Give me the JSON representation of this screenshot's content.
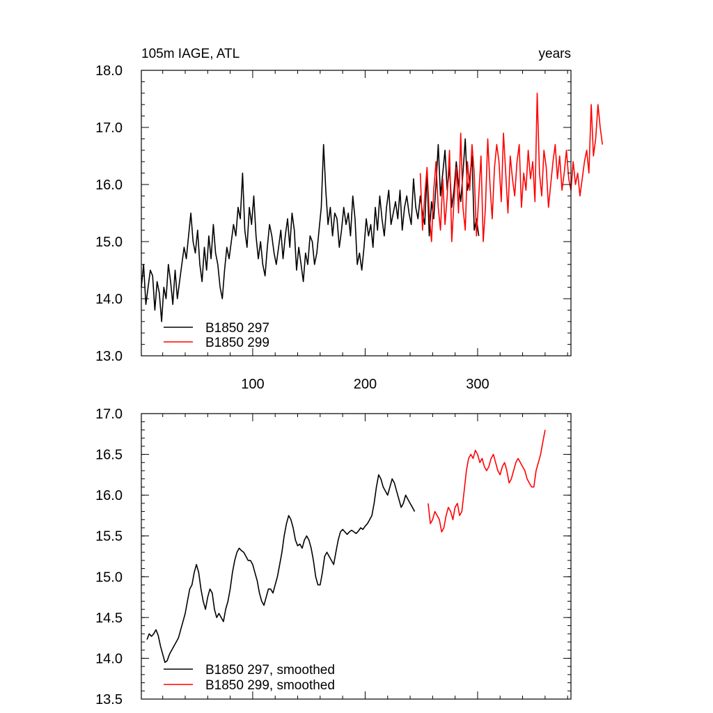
{
  "chart_data": [
    {
      "type": "line",
      "title": "105m IAGE, ATL",
      "xlabel_right": "years",
      "xlim": [
        1,
        383
      ],
      "ylim": [
        13.0,
        18.0
      ],
      "x_ticks": [
        100,
        200,
        300
      ],
      "y_ticks": [
        "13.0",
        "14.0",
        "15.0",
        "16.0",
        "17.0",
        "18.0"
      ],
      "legend": [
        "B1850 297",
        "B1850 299"
      ],
      "series": [
        {
          "name": "B1850 297",
          "color": "#000000",
          "x_start": 1,
          "x_step": 2,
          "values": [
            14.2,
            14.6,
            13.9,
            14.2,
            14.5,
            14.4,
            13.8,
            14.3,
            14.1,
            13.6,
            14.2,
            14.0,
            14.6,
            14.3,
            13.9,
            14.5,
            14.0,
            14.3,
            14.6,
            14.9,
            14.7,
            15.1,
            15.5,
            15.0,
            14.8,
            15.2,
            14.6,
            14.3,
            14.9,
            14.5,
            15.1,
            14.7,
            15.3,
            14.8,
            14.6,
            14.2,
            14.0,
            14.5,
            14.9,
            14.7,
            15.0,
            15.3,
            15.1,
            15.6,
            15.4,
            16.2,
            15.2,
            14.9,
            15.6,
            15.3,
            15.8,
            15.1,
            14.7,
            15.0,
            14.6,
            14.4,
            14.9,
            15.3,
            15.1,
            14.8,
            14.6,
            14.9,
            15.2,
            14.7,
            15.1,
            15.4,
            14.9,
            15.5,
            15.2,
            14.5,
            14.9,
            14.6,
            14.3,
            14.8,
            14.6,
            15.1,
            15.0,
            14.6,
            14.8,
            15.2,
            15.6,
            16.7,
            15.9,
            15.3,
            15.6,
            15.1,
            15.5,
            15.4,
            14.9,
            15.2,
            15.6,
            15.3,
            15.5,
            15.1,
            15.8,
            15.4,
            14.6,
            14.8,
            14.5,
            14.9,
            15.4,
            15.1,
            15.3,
            14.9,
            15.6,
            15.2,
            15.8,
            15.4,
            15.1,
            15.6,
            15.9,
            15.3,
            15.5,
            15.7,
            15.4,
            15.9,
            15.2,
            15.6,
            15.8,
            15.5,
            15.3,
            16.1,
            15.6,
            15.4,
            15.8,
            15.5,
            15.3,
            16.2,
            15.1,
            15.7,
            15.4,
            16.0,
            16.7,
            15.8,
            16.2,
            16.6,
            15.9,
            16.3,
            15.6,
            15.9,
            16.4,
            16.0,
            15.7,
            16.2,
            16.8,
            15.9,
            16.1,
            16.5,
            15.2,
            15.4,
            15.1
          ]
        },
        {
          "name": "B1850 299",
          "color": "#ff0000",
          "x_start": 249,
          "x_step": 2,
          "values": [
            16.2,
            15.2,
            15.8,
            16.3,
            15.5,
            15.0,
            15.9,
            16.4,
            15.6,
            15.2,
            16.1,
            15.3,
            15.8,
            16.6,
            15.0,
            15.7,
            16.3,
            15.5,
            16.9,
            15.6,
            15.2,
            16.4,
            15.9,
            16.7,
            16.2,
            15.1,
            15.8,
            16.5,
            15.0,
            15.6,
            16.8,
            16.0,
            15.4,
            16.3,
            16.7,
            16.4,
            15.7,
            16.9,
            16.2,
            15.5,
            16.5,
            16.1,
            15.8,
            16.4,
            16.7,
            15.6,
            16.2,
            15.9,
            16.6,
            16.1,
            16.4,
            15.7,
            17.6,
            16.2,
            15.8,
            16.6,
            16.3,
            15.6,
            16.0,
            16.4,
            16.7,
            16.1,
            16.5,
            15.9,
            16.2,
            16.6,
            16.1,
            15.9,
            16.4,
            16.0,
            16.2,
            15.8,
            16.1,
            16.4,
            16.6,
            16.2,
            17.4,
            16.5,
            16.8,
            17.4,
            17.0,
            16.7
          ]
        }
      ]
    },
    {
      "type": "line",
      "xlim": [
        1,
        383
      ],
      "ylim": [
        13.5,
        17.0
      ],
      "y_ticks": [
        "13.5",
        "14.0",
        "14.5",
        "15.0",
        "15.5",
        "16.0",
        "16.5",
        "17.0"
      ],
      "legend": [
        "B1850 297, smoothed",
        "B1850 299, smoothed"
      ],
      "series": [
        {
          "name": "B1850 297, smoothed",
          "color": "#000000",
          "x_start": 6,
          "x_step": 2,
          "values": [
            14.23,
            14.3,
            14.27,
            14.3,
            14.35,
            14.28,
            14.15,
            14.05,
            13.95,
            13.97,
            14.05,
            14.1,
            14.15,
            14.2,
            14.25,
            14.35,
            14.45,
            14.55,
            14.7,
            14.85,
            14.9,
            15.05,
            15.15,
            15.05,
            14.85,
            14.7,
            14.6,
            14.75,
            14.85,
            14.8,
            14.6,
            14.5,
            14.55,
            14.5,
            14.45,
            14.6,
            14.7,
            14.85,
            15.05,
            15.2,
            15.3,
            15.35,
            15.32,
            15.3,
            15.25,
            15.2,
            15.2,
            15.15,
            15.05,
            14.95,
            14.8,
            14.7,
            14.65,
            14.75,
            14.85,
            14.85,
            14.8,
            14.9,
            15.0,
            15.15,
            15.3,
            15.5,
            15.65,
            15.75,
            15.7,
            15.6,
            15.45,
            15.38,
            15.4,
            15.35,
            15.45,
            15.5,
            15.45,
            15.35,
            15.2,
            15.0,
            14.9,
            14.9,
            15.05,
            15.25,
            15.3,
            15.25,
            15.2,
            15.15,
            15.3,
            15.45,
            15.55,
            15.58,
            15.55,
            15.52,
            15.55,
            15.57,
            15.55,
            15.53,
            15.56,
            15.6,
            15.58,
            15.62,
            15.65,
            15.7,
            15.75,
            15.9,
            16.1,
            16.25,
            16.2,
            16.1,
            16.05,
            16.0,
            16.1,
            16.2,
            16.15,
            16.05,
            15.95,
            15.85,
            15.9,
            16.0,
            15.95,
            15.9,
            15.85,
            15.8
          ]
        },
        {
          "name": "B1850 299, smoothed",
          "color": "#ff0000",
          "x_start": 256,
          "x_step": 2,
          "values": [
            15.9,
            15.65,
            15.7,
            15.8,
            15.75,
            15.7,
            15.55,
            15.6,
            15.75,
            15.85,
            15.8,
            15.7,
            15.85,
            15.9,
            15.75,
            15.8,
            16.05,
            16.3,
            16.45,
            16.5,
            16.45,
            16.55,
            16.5,
            16.4,
            16.45,
            16.35,
            16.3,
            16.35,
            16.45,
            16.5,
            16.4,
            16.3,
            16.25,
            16.35,
            16.4,
            16.3,
            16.15,
            16.2,
            16.3,
            16.4,
            16.45,
            16.4,
            16.35,
            16.3,
            16.2,
            16.15,
            16.1,
            16.1,
            16.3,
            16.4,
            16.5,
            16.65,
            16.8
          ]
        }
      ]
    }
  ]
}
